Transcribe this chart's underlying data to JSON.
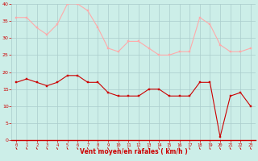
{
  "x": [
    0,
    1,
    2,
    3,
    4,
    5,
    6,
    7,
    8,
    9,
    10,
    11,
    12,
    13,
    14,
    15,
    16,
    17,
    18,
    19,
    20,
    21,
    22,
    23
  ],
  "wind_avg": [
    17,
    18,
    17,
    16,
    17,
    19,
    19,
    17,
    17,
    14,
    13,
    13,
    13,
    15,
    15,
    13,
    13,
    13,
    17,
    17,
    1,
    13,
    14,
    10
  ],
  "wind_gust": [
    36,
    36,
    33,
    31,
    34,
    40,
    40,
    38,
    33,
    27,
    26,
    29,
    29,
    27,
    25,
    25,
    26,
    26,
    36,
    34,
    28,
    26,
    26,
    27
  ],
  "avg_color": "#cc0000",
  "gust_color": "#ffaaaa",
  "bg_color": "#cceee8",
  "grid_color": "#aacccc",
  "xlabel": "Vent moyen/en rafales ( km/h )",
  "xlabel_color": "#cc0000",
  "tick_color": "#cc0000",
  "ylim": [
    0,
    40
  ],
  "yticks": [
    0,
    5,
    10,
    15,
    20,
    25,
    30,
    35,
    40
  ]
}
